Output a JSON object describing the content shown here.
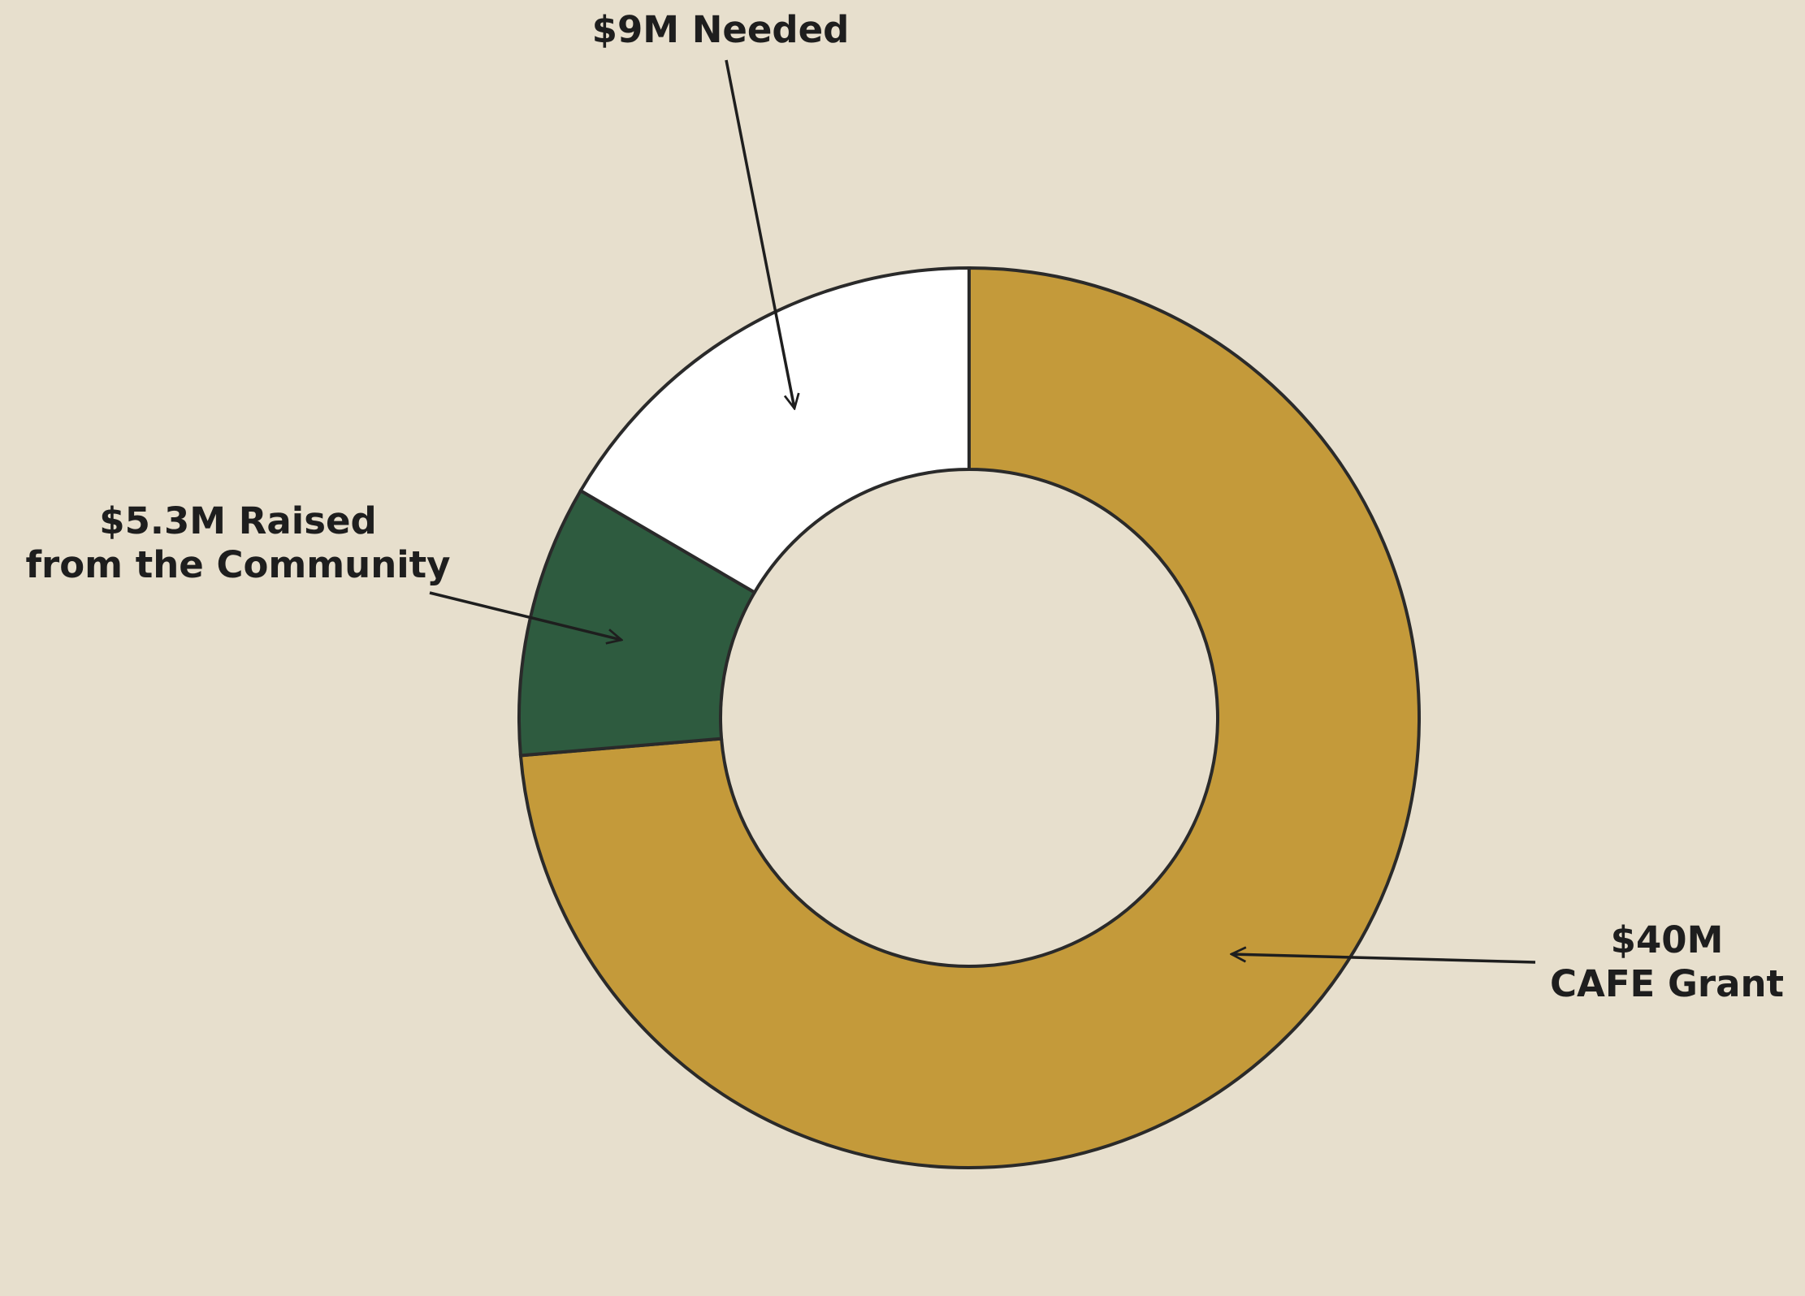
{
  "chart_data": {
    "type": "donut",
    "labels": [
      [
        "$40M",
        "CAFE Grant"
      ],
      [
        "$5.3M Raised",
        "from the Community"
      ],
      [
        "$9M Needed"
      ]
    ],
    "values": [
      40,
      5.3,
      9
    ],
    "colors": [
      "#c49a3a",
      "#2e5b3f",
      "#ffffff"
    ],
    "start": "top",
    "direction": "clockwise"
  }
}
